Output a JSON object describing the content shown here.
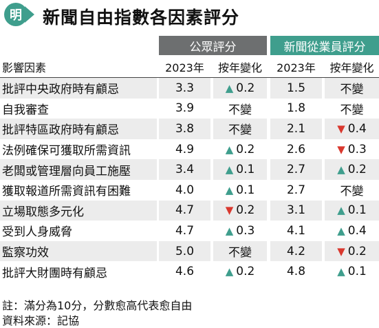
{
  "title": "新聞自由指數各因素評分",
  "logo_char": "明",
  "groups": {
    "public": "公眾評分",
    "practitioners": "新聞從業員評分"
  },
  "headers": {
    "factor": "影響因素",
    "year_a": "2023年",
    "change_a": "按年變化",
    "year_b": "2023年",
    "change_b": "按年變化"
  },
  "colors": {
    "teal": "#3f9e8d",
    "gray": "#6d6f70",
    "red": "#d9382e"
  },
  "rows": [
    {
      "factor": "批評中央政府時有顧忌",
      "pub_score": "3.3",
      "pub_dir": "up",
      "pub_change": "0.2",
      "prac_score": "1.5",
      "prac_dir": "none",
      "prac_change": "不變"
    },
    {
      "factor": "自我審查",
      "pub_score": "3.9",
      "pub_dir": "none",
      "pub_change": "不變",
      "prac_score": "1.8",
      "prac_dir": "none",
      "prac_change": "不變"
    },
    {
      "factor": "批評特區政府時有顧忌",
      "pub_score": "3.8",
      "pub_dir": "none",
      "pub_change": "不變",
      "prac_score": "2.1",
      "prac_dir": "down",
      "prac_change": "0.4"
    },
    {
      "factor": "法例確保可獲取所需資訊",
      "pub_score": "4.9",
      "pub_dir": "up",
      "pub_change": "0.2",
      "prac_score": "2.6",
      "prac_dir": "down",
      "prac_change": "0.3"
    },
    {
      "factor": "老闆或管理層向員工施壓",
      "pub_score": "3.4",
      "pub_dir": "up",
      "pub_change": "0.1",
      "prac_score": "2.7",
      "prac_dir": "up",
      "prac_change": "0.2"
    },
    {
      "factor": "獲取報道所需資訊有困難",
      "pub_score": "4.0",
      "pub_dir": "up",
      "pub_change": "0.1",
      "prac_score": "2.7",
      "prac_dir": "none",
      "prac_change": "不變"
    },
    {
      "factor": "立場取態多元化",
      "pub_score": "4.7",
      "pub_dir": "down",
      "pub_change": "0.2",
      "prac_score": "3.1",
      "prac_dir": "up",
      "prac_change": "0.1"
    },
    {
      "factor": "受到人身威脅",
      "pub_score": "4.7",
      "pub_dir": "up",
      "pub_change": "0.3",
      "prac_score": "4.1",
      "prac_dir": "up",
      "prac_change": "0.4"
    },
    {
      "factor": "監察功效",
      "pub_score": "5.0",
      "pub_dir": "none",
      "pub_change": "不變",
      "prac_score": "4.2",
      "prac_dir": "down",
      "prac_change": "0.2"
    },
    {
      "factor": "批評大財團時有顧忌",
      "pub_score": "4.6",
      "pub_dir": "up",
      "pub_change": "0.2",
      "prac_score": "4.8",
      "prac_dir": "up",
      "prac_change": "0.1"
    }
  ],
  "footnotes": {
    "note": "註：滿分為10分，分數愈高代表愈自由",
    "source": "資料來源：記協"
  }
}
